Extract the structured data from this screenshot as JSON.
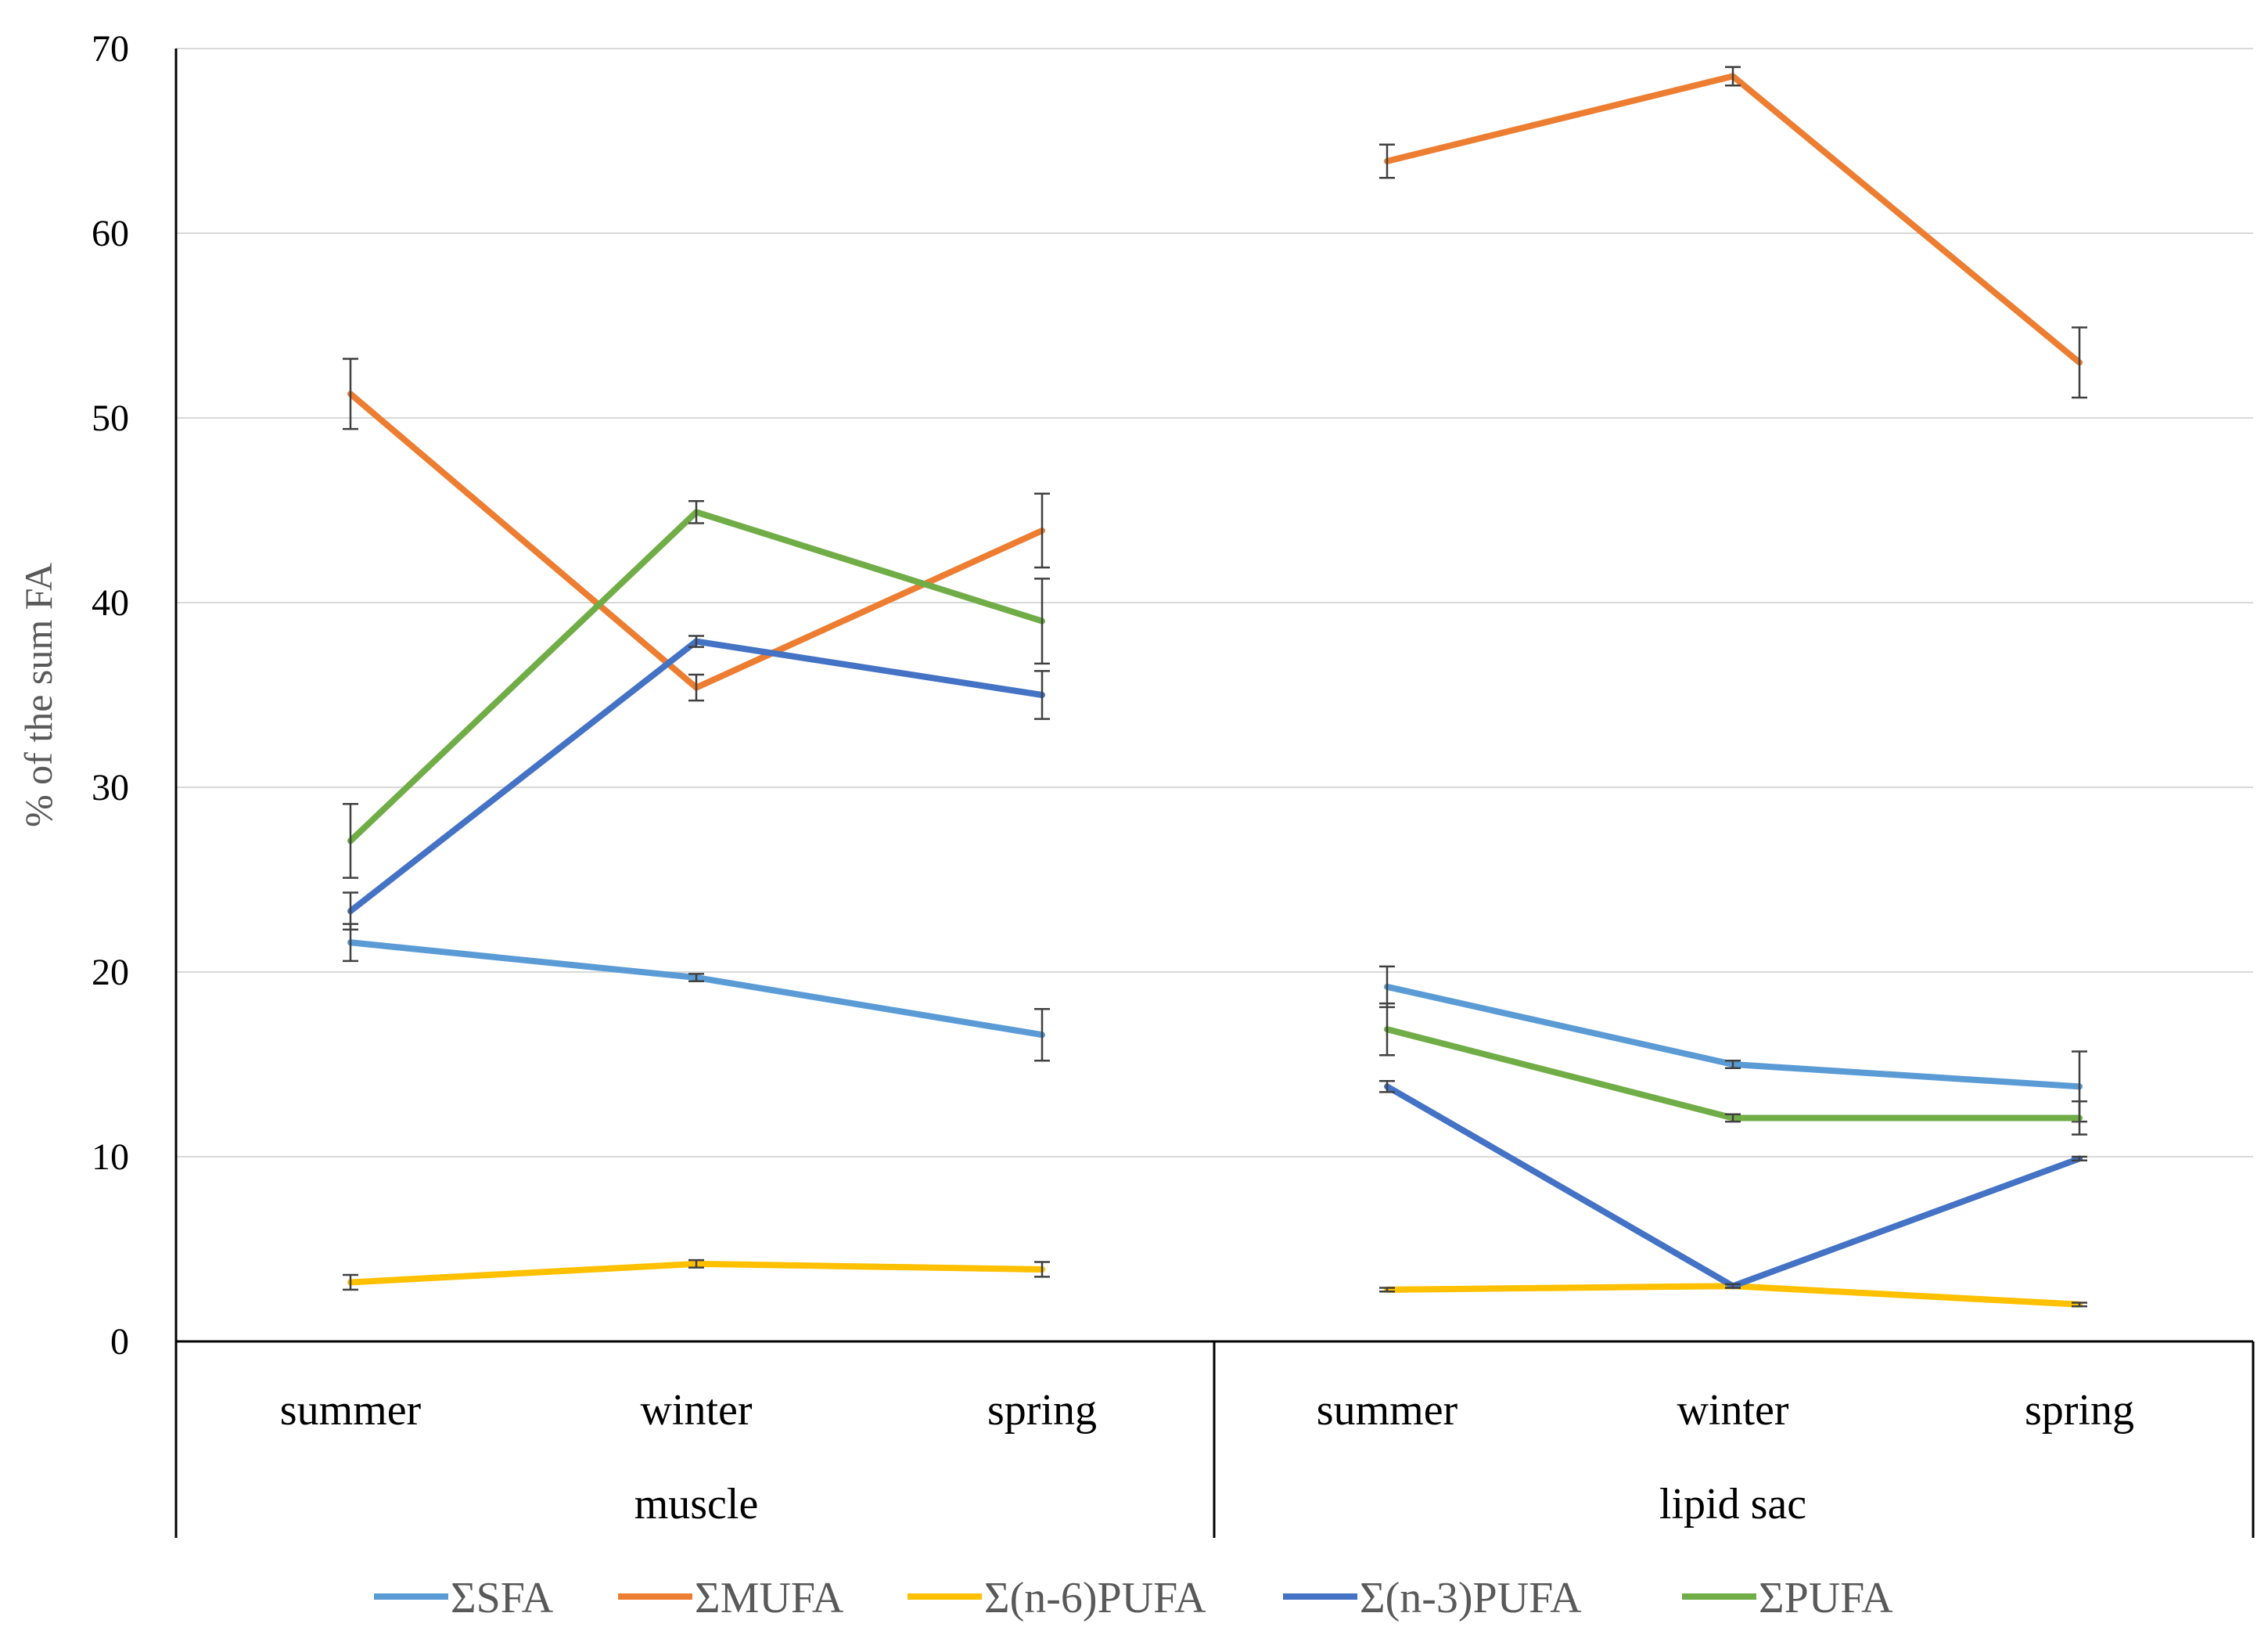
{
  "chart_data": {
    "type": "line",
    "ylabel": "% of the sum FA",
    "ylim": [
      0,
      70
    ],
    "yticks": [
      0,
      10,
      20,
      30,
      40,
      50,
      60,
      70
    ],
    "grid": true,
    "legend_position": "bottom",
    "groups": [
      {
        "name": "muscle",
        "categories": [
          "summer",
          "winter",
          "spring"
        ]
      },
      {
        "name": "lipid sac",
        "categories": [
          "summer",
          "winter",
          "spring"
        ]
      }
    ],
    "series": [
      {
        "name": "ΣSFA",
        "color": "#5B9BD5",
        "segments": [
          [
            21.6,
            19.7,
            16.6
          ],
          [
            19.2,
            15.0,
            13.8
          ]
        ],
        "errors": [
          [
            1.0,
            0.2,
            1.4
          ],
          [
            1.1,
            0.2,
            1.9
          ]
        ]
      },
      {
        "name": "ΣMUFA",
        "color": "#ED7D31",
        "segments": [
          [
            51.3,
            35.4,
            43.9
          ],
          [
            63.9,
            68.5,
            53.0
          ]
        ],
        "errors": [
          [
            1.9,
            0.7,
            2.0
          ],
          [
            0.9,
            0.5,
            1.9
          ]
        ]
      },
      {
        "name": "Σ(n-6)PUFA",
        "color": "#FFC000",
        "segments": [
          [
            3.2,
            4.2,
            3.9
          ],
          [
            2.8,
            3.0,
            2.0
          ]
        ],
        "errors": [
          [
            0.4,
            0.2,
            0.4
          ],
          [
            0.1,
            0.1,
            0.1
          ]
        ]
      },
      {
        "name": "Σ(n-3)PUFA",
        "color": "#4472C4",
        "segments": [
          [
            23.3,
            37.9,
            35.0
          ],
          [
            13.8,
            3.0,
            9.9
          ]
        ],
        "errors": [
          [
            1.0,
            0.3,
            1.3
          ],
          [
            0.3,
            0.1,
            0.1
          ]
        ]
      },
      {
        "name": "ΣPUFA",
        "color": "#70AD47",
        "segments": [
          [
            27.1,
            44.9,
            39.0
          ],
          [
            16.9,
            12.1,
            12.1
          ]
        ],
        "errors": [
          [
            2.0,
            0.6,
            2.3
          ],
          [
            1.4,
            0.2,
            0.9
          ]
        ]
      }
    ]
  }
}
